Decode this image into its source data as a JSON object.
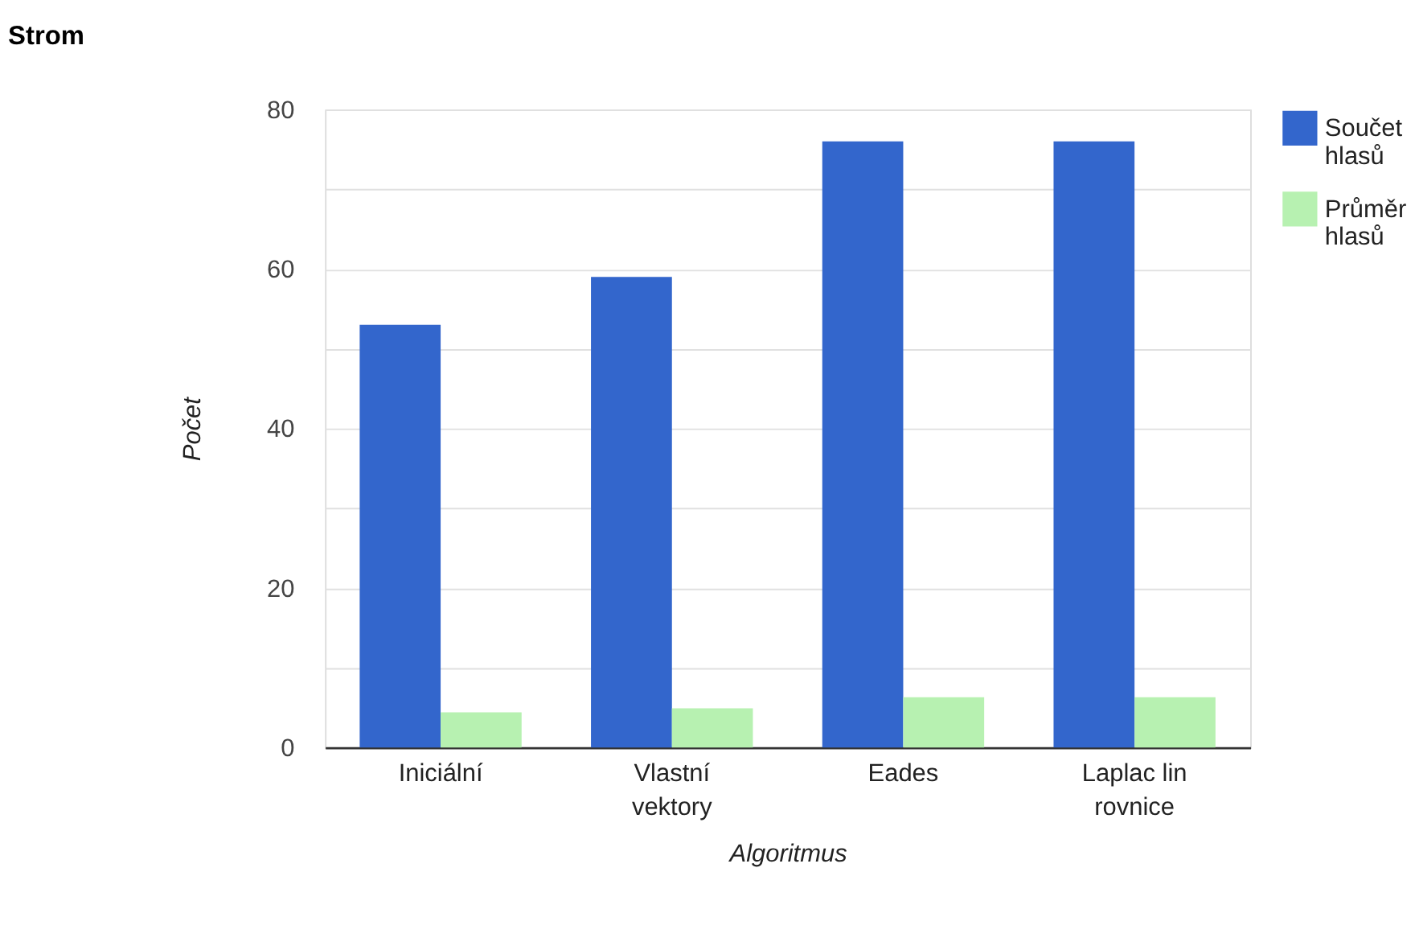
{
  "chart_data": {
    "type": "bar",
    "title": "Strom",
    "xlabel": "Algoritmus",
    "ylabel": "Počet",
    "categories": [
      "Iniciální",
      "Vlastní vektory",
      "Eades",
      "Laplac lin rovnice"
    ],
    "series": [
      {
        "name": "Součet hlasů",
        "color": "#3366cc",
        "values": [
          53,
          59,
          76,
          76
        ]
      },
      {
        "name": "Průměr hlasů",
        "color": "#b7f1b1",
        "values": [
          4.4,
          4.9,
          6.3,
          6.3
        ]
      }
    ],
    "ylim": [
      0,
      80
    ],
    "yticks": [
      0,
      {
        "value": 10,
        "label": null
      },
      20,
      {
        "value": 30,
        "label": null
      },
      40,
      {
        "value": 50,
        "label": null
      },
      60,
      {
        "value": 70,
        "label": null
      },
      80
    ],
    "grid": true,
    "legend": "right"
  }
}
